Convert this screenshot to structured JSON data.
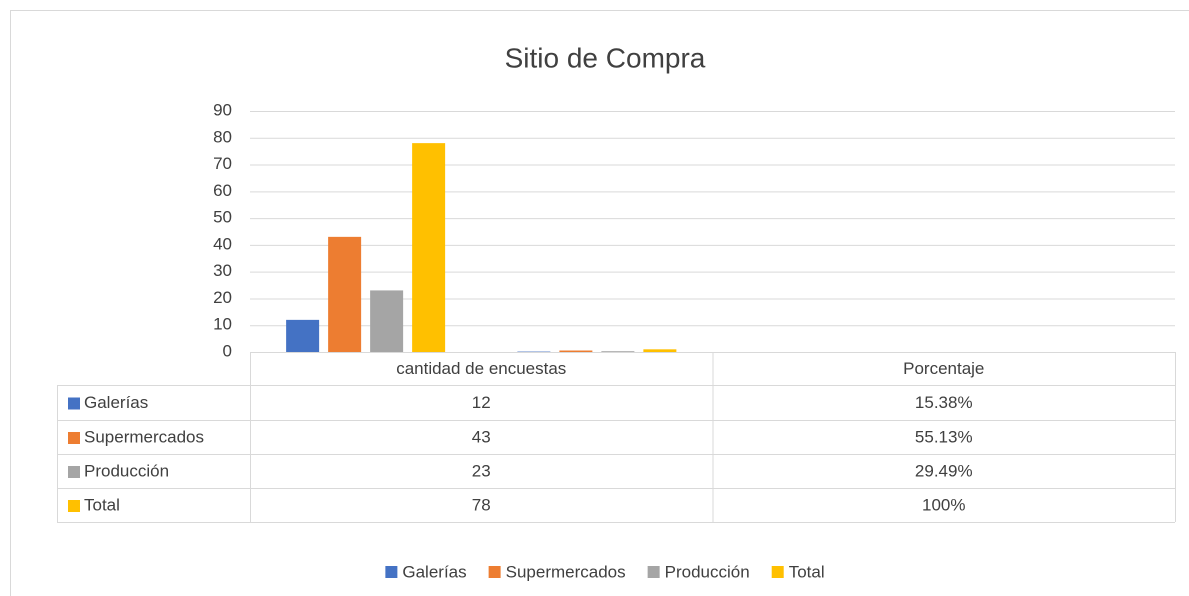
{
  "chart_data": {
    "type": "bar",
    "title": "Sitio de Compra",
    "categories": [
      "cantidad de encuestas",
      "Porcentaje"
    ],
    "series": [
      {
        "name": "Galerías",
        "color": "#4472c4",
        "values": [
          12,
          0.1538
        ],
        "value_labels": [
          "12",
          "15.38%"
        ]
      },
      {
        "name": "Supermercados",
        "color": "#ed7d31",
        "values": [
          43,
          0.5513
        ],
        "value_labels": [
          "43",
          "55.13%"
        ]
      },
      {
        "name": "Producción",
        "color": "#a5a5a5",
        "values": [
          23,
          0.2949
        ],
        "value_labels": [
          "23",
          "29.49%"
        ]
      },
      {
        "name": "Total",
        "color": "#ffc000",
        "values": [
          78,
          1
        ],
        "value_labels": [
          "78",
          "100%"
        ]
      }
    ],
    "ylim": [
      0,
      90
    ],
    "yticks": [
      0,
      10,
      20,
      30,
      40,
      50,
      60,
      70,
      80,
      90
    ],
    "grid": true,
    "legend": "bottom"
  }
}
